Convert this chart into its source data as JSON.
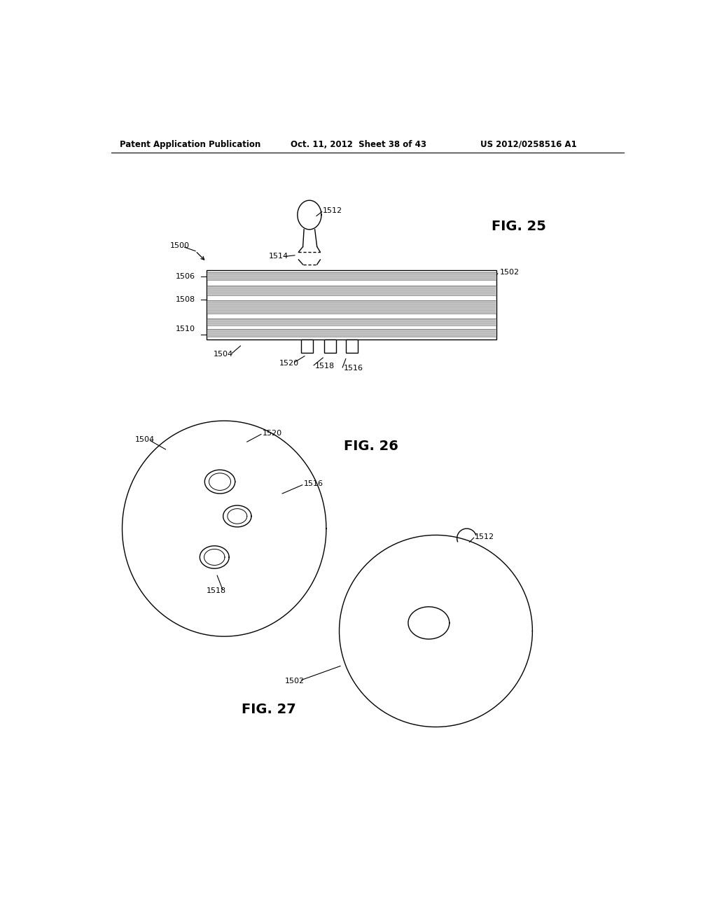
{
  "bg_color": "#ffffff",
  "header_left": "Patent Application Publication",
  "header_mid": "Oct. 11, 2012  Sheet 38 of 43",
  "header_right": "US 2012/0258516 A1",
  "fig25_label": "FIG. 25",
  "fig26_label": "FIG. 26",
  "fig27_label": "FIG. 27"
}
